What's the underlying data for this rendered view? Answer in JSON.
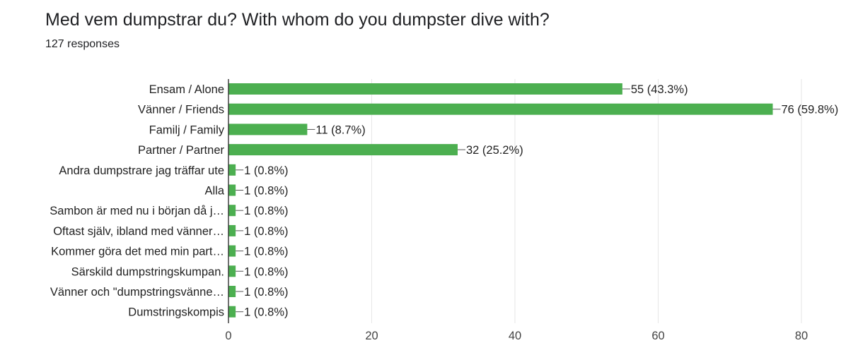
{
  "header": {
    "title": "Med vem dumpstrar du? With whom do you dumpster dive with?",
    "responses": "127 responses"
  },
  "colors": {
    "bar": "#4caf50",
    "grid": "#e6e6e6",
    "axis": "#333333",
    "text": "#222222"
  },
  "chart_data": {
    "type": "bar",
    "orientation": "horizontal",
    "categories": [
      "Ensam / Alone",
      "Vänner / Friends",
      "Familj / Family",
      "Partner / Partner",
      "Andra dumpstrare jag träffar ute",
      "Alla",
      "Sambon är med nu i början då j…",
      "Oftast själv, ibland med vänner…",
      "Kommer göra det med min part…",
      "Särskild dumpstringskumpan.",
      "Vänner och \"dumpstringsvänne…",
      "Dumstringskompis"
    ],
    "values": [
      55,
      76,
      11,
      32,
      1,
      1,
      1,
      1,
      1,
      1,
      1,
      1
    ],
    "labels": [
      "55 (43.3%)",
      "76 (59.8%)",
      "11 (8.7%)",
      "32 (25.2%)",
      "1 (0.8%)",
      "1 (0.8%)",
      "1 (0.8%)",
      "1 (0.8%)",
      "1 (0.8%)",
      "1 (0.8%)",
      "1 (0.8%)",
      "1 (0.8%)"
    ],
    "xlim": [
      0,
      80
    ],
    "xticks": [
      "0",
      "20",
      "40",
      "60",
      "80"
    ],
    "grid": true
  }
}
